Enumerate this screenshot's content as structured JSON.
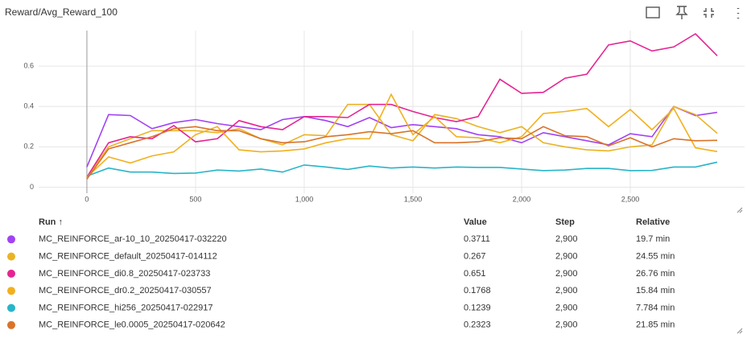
{
  "header": {
    "title": "Reward/Avg_Reward_100"
  },
  "chart_data": {
    "type": "line",
    "x": [
      0,
      100,
      200,
      300,
      400,
      500,
      600,
      700,
      800,
      900,
      1000,
      1100,
      1200,
      1300,
      1400,
      1500,
      1600,
      1700,
      1800,
      1900,
      2000,
      2100,
      2200,
      2300,
      2400,
      2500,
      2600,
      2700,
      2800,
      2900
    ],
    "series": [
      {
        "name": "MC_REINFORCE_ar-10_10_20250417-032220",
        "color": "#a142f4",
        "values": [
          0.1,
          0.36,
          0.355,
          0.29,
          0.32,
          0.335,
          0.315,
          0.3,
          0.285,
          0.335,
          0.35,
          0.33,
          0.3,
          0.345,
          0.295,
          0.31,
          0.3,
          0.29,
          0.26,
          0.25,
          0.22,
          0.27,
          0.25,
          0.23,
          0.21,
          0.265,
          0.25,
          0.4,
          0.355,
          0.3711
        ]
      },
      {
        "name": "MC_REINFORCE_default_20250417-014112",
        "color": "#e9b324",
        "values": [
          0.05,
          0.2,
          0.24,
          0.28,
          0.28,
          0.28,
          0.27,
          0.29,
          0.24,
          0.21,
          0.26,
          0.255,
          0.41,
          0.41,
          0.26,
          0.23,
          0.36,
          0.34,
          0.3,
          0.27,
          0.3,
          0.22,
          0.2,
          0.185,
          0.18,
          0.2,
          0.21,
          0.4,
          0.36,
          0.267
        ]
      },
      {
        "name": "MC_REINFORCE_di0.8_20250417-023733",
        "color": "#e52592",
        "values": [
          0.05,
          0.22,
          0.25,
          0.24,
          0.305,
          0.225,
          0.24,
          0.33,
          0.3,
          0.285,
          0.35,
          0.35,
          0.345,
          0.41,
          0.41,
          0.375,
          0.345,
          0.325,
          0.35,
          0.535,
          0.465,
          0.47,
          0.54,
          0.56,
          0.705,
          0.725,
          0.675,
          0.695,
          0.76,
          0.651
        ]
      },
      {
        "name": "MC_REINFORCE_dr0.2_20250417-030557",
        "color": "#f2b01e",
        "values": [
          0.05,
          0.15,
          0.12,
          0.155,
          0.175,
          0.26,
          0.3,
          0.185,
          0.175,
          0.18,
          0.19,
          0.22,
          0.24,
          0.24,
          0.46,
          0.26,
          0.35,
          0.25,
          0.245,
          0.22,
          0.25,
          0.365,
          0.375,
          0.39,
          0.3,
          0.385,
          0.285,
          0.39,
          0.195,
          0.1768
        ]
      },
      {
        "name": "MC_REINFORCE_hi256_20250417-022917",
        "color": "#28b5c8",
        "values": [
          0.055,
          0.095,
          0.075,
          0.075,
          0.068,
          0.07,
          0.085,
          0.08,
          0.09,
          0.075,
          0.11,
          0.1,
          0.088,
          0.105,
          0.095,
          0.1,
          0.095,
          0.1,
          0.098,
          0.098,
          0.09,
          0.082,
          0.085,
          0.093,
          0.093,
          0.082,
          0.083,
          0.1,
          0.1,
          0.1239
        ]
      },
      {
        "name": "MC_REINFORCE_le0.0005_20250417-020642",
        "color": "#d9732a",
        "values": [
          0.04,
          0.19,
          0.22,
          0.25,
          0.29,
          0.3,
          0.28,
          0.28,
          0.24,
          0.22,
          0.225,
          0.25,
          0.26,
          0.275,
          0.265,
          0.28,
          0.22,
          0.22,
          0.225,
          0.245,
          0.24,
          0.3,
          0.255,
          0.25,
          0.205,
          0.245,
          0.2,
          0.24,
          0.23,
          0.2323
        ]
      }
    ],
    "xlim": [
      -222,
      3026
    ],
    "ylim": [
      -0.03,
      0.776
    ],
    "xticks": [
      0,
      500,
      {
        "value": 1000,
        "label": "1,000"
      },
      {
        "value": 1500,
        "label": "1,500"
      },
      {
        "value": 2000,
        "label": "2,000"
      },
      {
        "value": 2500,
        "label": "2,500"
      }
    ],
    "yticks": [
      0,
      0.2,
      0.4,
      0.6
    ],
    "grid": true
  },
  "table": {
    "columns": [
      "Run ↑",
      "Value",
      "Step",
      "Relative"
    ],
    "rows": [
      [
        "2,900",
        "19.7 min"
      ],
      [
        "2,900",
        "24.55 min"
      ],
      [
        "2,900",
        "26.76 min"
      ],
      [
        "2,900",
        "15.84 min"
      ],
      [
        "2,900",
        "7.784 min"
      ],
      [
        "2,900",
        "21.85 min"
      ]
    ]
  }
}
